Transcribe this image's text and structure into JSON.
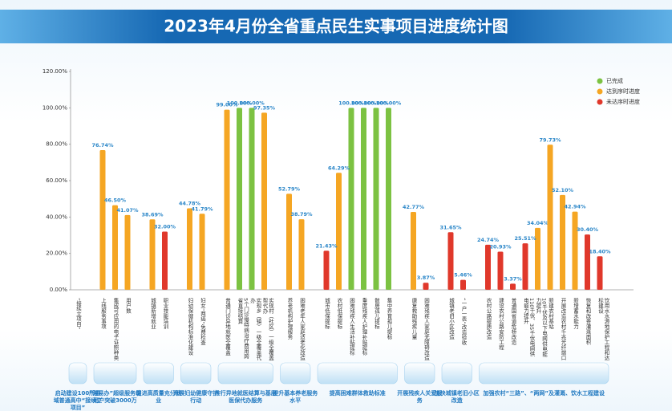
{
  "chart_data": {
    "type": "bar",
    "title": "2023年4月份全省重点民生实事项目进度统计图",
    "ylim": [
      0,
      120
    ],
    "yticks": [
      {
        "value": 0,
        "label": "0.00%"
      },
      {
        "value": 20,
        "label": "20.00%"
      },
      {
        "value": 40,
        "label": "40.00%"
      },
      {
        "value": 60,
        "label": "60.00%"
      },
      {
        "value": 80,
        "label": "80.00%"
      },
      {
        "value": 100,
        "label": "100.00%"
      },
      {
        "value": 120,
        "label": "120.00%"
      }
    ],
    "legend": "upper right",
    "groups": [
      {
        "label": "启动建设100所县域普通高中“接续立项目”",
        "categories": [
          "“接续立项目”"
        ]
      },
      {
        "label": "“湘易办”超级服务端用户突破3000万",
        "categories": [
          "上线服务事项",
          "集成可应用的电子证照种类",
          "用户数"
        ]
      },
      {
        "label": "促进高质量充分就业",
        "categories": [
          "城镇新增就业",
          "职业技能培训"
        ]
      },
      {
        "label": "开展妇幼健康守护行动",
        "categories": [
          "妇幼保健机构标准化建设",
          "妇女“两癌”免费检查"
        ]
      },
      {
        "label": "推行异地就医结算与基层医保代办服务",
        "categories": [
          "普通门诊异地就医全覆盖",
          "5个门诊慢特病治疗费用跨省直接结算",
          "实现乡（镇）一级全覆盖代办",
          "实现村（社区）一级全覆盖帮代办"
        ]
      },
      {
        "label": "提升基本养老服务水平",
        "categories": [
          "养老机构护理服务",
          "困难老年人家庭适老化改造"
        ]
      },
      {
        "label": "提高困难群体救助标准",
        "categories": [
          "城市低保提标",
          "农村低保提标",
          "困难残疾人生活补贴提标",
          "重度残疾人护理补贴提标",
          "散居孤儿提标",
          "集中养育孤儿提标"
        ]
      },
      {
        "label": "开展残疾人关爱服务",
        "categories": [
          "康复救助残疾儿童",
          "困难残疾人家庭无障碍改造"
        ]
      },
      {
        "label": "加快城镇老旧小区改造",
        "categories": [
          "城镇老旧小区改造",
          "“一户一表”改造验收"
        ]
      },
      {
        "label": "加强农村“三路”、“两网”及灌溉、饮水工程建设",
        "categories": [
          "农村公路提质改造",
          "建设农村公路安防工程",
          "普通国省道危桥改造",
          "110千伏、35千伏电网供电能力提升",
          "10千伏及以下电网供电能力提升",
          "新建农村基站",
          "开展改造农村千兆光纤端口",
          "新增蓄水能力",
          "恢复和改善灌溉面积",
          "饮用水水源地保护工程和达标建设"
        ]
      }
    ],
    "series": [
      {
        "name": "已完成",
        "color": "#7cc242",
        "values": [
          null,
          null,
          null,
          null,
          null,
          null,
          null,
          null,
          null,
          100,
          100,
          null,
          null,
          null,
          null,
          null,
          100,
          100,
          100,
          100,
          null,
          null,
          null,
          null,
          null,
          null,
          null,
          null,
          null,
          null,
          null,
          null,
          null,
          null
        ],
        "value_labels": [
          null,
          null,
          null,
          null,
          null,
          null,
          null,
          null,
          null,
          "100.00%",
          "100.00%",
          null,
          null,
          null,
          null,
          null,
          "100.00%",
          "100.00%",
          "100.00%",
          "100.00%",
          null,
          null,
          null,
          null,
          null,
          null,
          null,
          null,
          null,
          null,
          null,
          null,
          null,
          null
        ]
      },
      {
        "name": "达到序时进度",
        "color": "#f5a623",
        "values": [
          null,
          76.74,
          46.5,
          41.07,
          38.69,
          null,
          44.78,
          41.79,
          99,
          null,
          null,
          97.35,
          52.79,
          38.79,
          null,
          64.29,
          null,
          null,
          null,
          null,
          42.77,
          null,
          null,
          null,
          null,
          null,
          null,
          null,
          34.04,
          79.73,
          52.1,
          42.94,
          null,
          null
        ],
        "value_labels": [
          null,
          "76.74%",
          "46.50%",
          "41.07%",
          "38.69%",
          null,
          "44.78%",
          "41.79%",
          "99.00%",
          null,
          null,
          "97.35%",
          "52.79%",
          "38.79%",
          null,
          "64.29%",
          null,
          null,
          null,
          null,
          "42.77%",
          null,
          null,
          null,
          null,
          null,
          null,
          null,
          "34.04%",
          "79.73%",
          "52.10%",
          "42.94%",
          null,
          null
        ]
      },
      {
        "name": "未达序时进度",
        "color": "#e0382b",
        "values": [
          null,
          null,
          null,
          null,
          null,
          32,
          null,
          null,
          null,
          null,
          null,
          null,
          null,
          null,
          21.43,
          null,
          null,
          null,
          null,
          null,
          null,
          3.87,
          31.65,
          5.46,
          24.74,
          20.93,
          3.37,
          25.51,
          null,
          null,
          null,
          null,
          30.4,
          18.4
        ],
        "value_labels": [
          null,
          null,
          null,
          null,
          null,
          "32.00%",
          null,
          null,
          null,
          null,
          null,
          null,
          null,
          null,
          "21.43%",
          null,
          null,
          null,
          null,
          null,
          null,
          "3.87%",
          "31.65%",
          "5.46%",
          "24.74%",
          "20.93%",
          "3.37%",
          "25.51%",
          null,
          null,
          null,
          null,
          "30.40%",
          "18.40%"
        ]
      }
    ]
  }
}
